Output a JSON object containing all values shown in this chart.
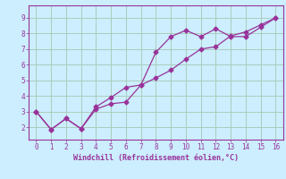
{
  "xlabel": "Windchill (Refroidissement éolien,°C)",
  "bg_color": "#cceeff",
  "grid_color": "#aaccbb",
  "line_color": "#993399",
  "line1_x": [
    0,
    1,
    2,
    3,
    4,
    5,
    6,
    7,
    8,
    9,
    10,
    11,
    12,
    13,
    14,
    15,
    16
  ],
  "line1_y": [
    3.0,
    1.85,
    2.55,
    1.9,
    3.15,
    3.5,
    3.6,
    4.7,
    6.8,
    7.8,
    8.2,
    7.8,
    8.3,
    7.8,
    7.8,
    8.4,
    9.0
  ],
  "line2_x": [
    0,
    1,
    2,
    3,
    4,
    5,
    6,
    7,
    8,
    9,
    10,
    11,
    12,
    13,
    14,
    15,
    16
  ],
  "line2_y": [
    3.0,
    1.85,
    2.55,
    1.9,
    3.3,
    3.9,
    4.55,
    4.7,
    5.15,
    5.65,
    6.35,
    7.0,
    7.15,
    7.85,
    8.1,
    8.55,
    9.0
  ],
  "xlim": [
    -0.5,
    16.5
  ],
  "ylim": [
    1.2,
    9.8
  ],
  "xticks": [
    0,
    1,
    2,
    3,
    4,
    5,
    6,
    7,
    8,
    9,
    10,
    11,
    12,
    13,
    14,
    15,
    16
  ],
  "yticks": [
    2,
    3,
    4,
    5,
    6,
    7,
    8,
    9
  ]
}
